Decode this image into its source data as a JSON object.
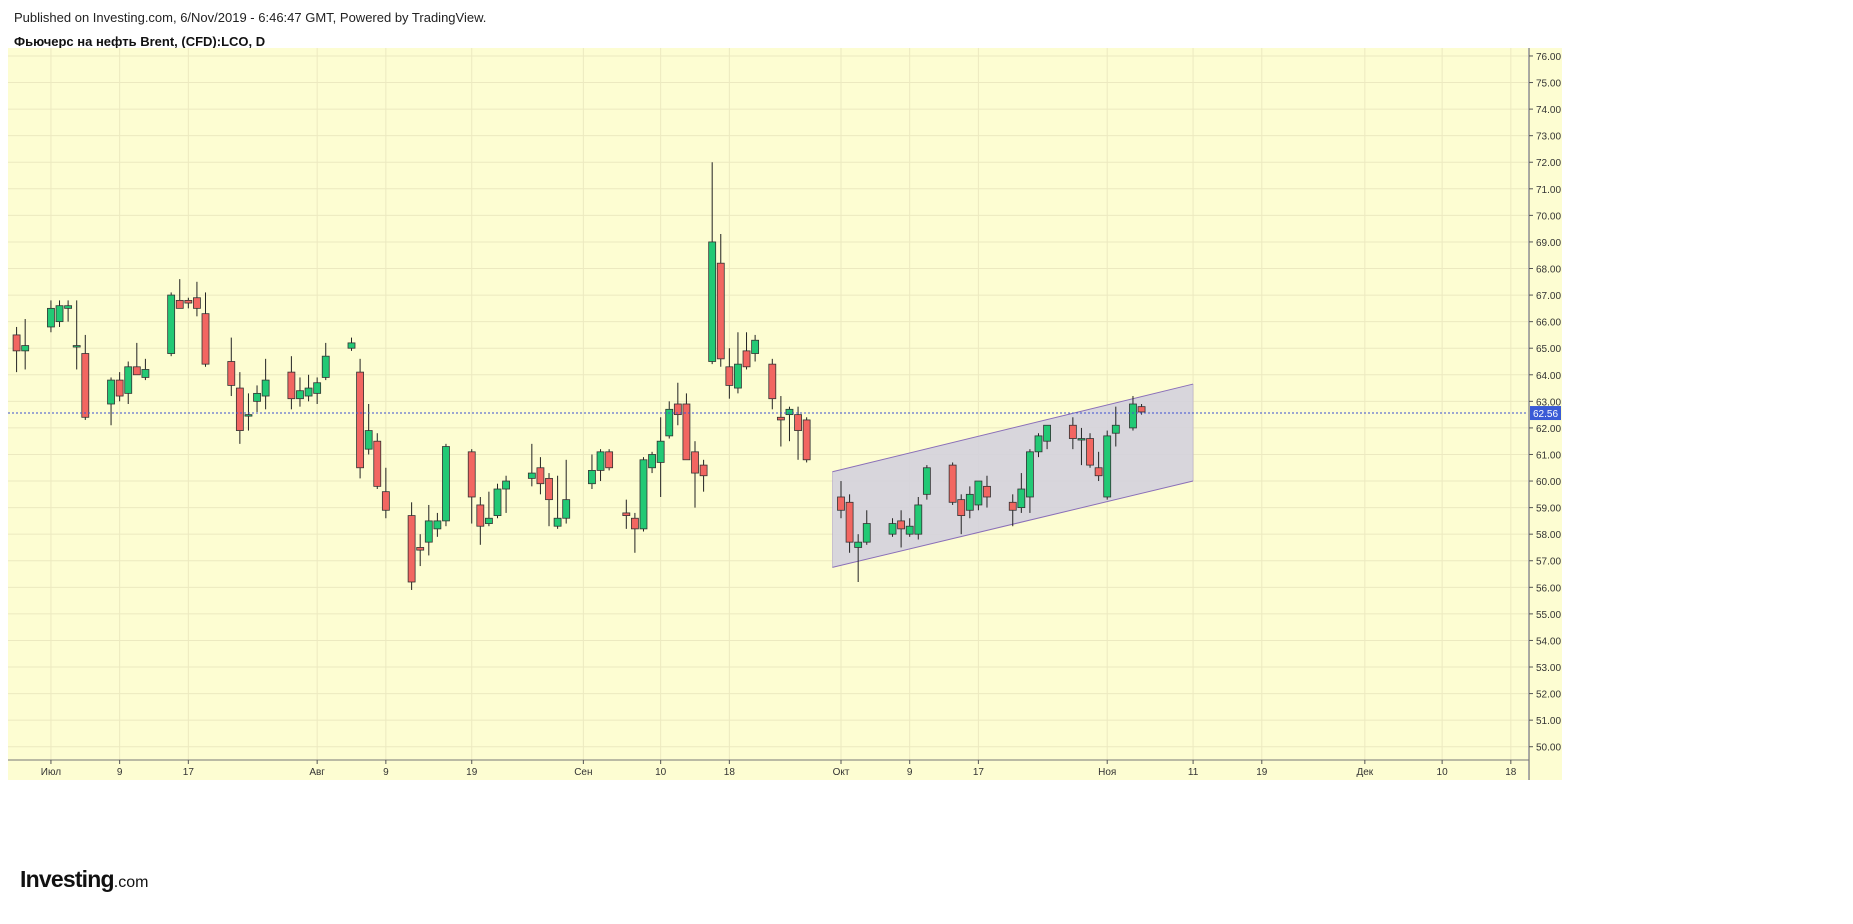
{
  "header": {
    "published": "Published on Investing.com, 6/Nov/2019 - 6:46:47 GMT, Powered by TradingView.",
    "symbol": "Фьючерс на нефть Brent, (CFD):LCO, D"
  },
  "logo": {
    "main": "Investing",
    "suffix": ".com"
  },
  "colors": {
    "background": "#fdfdd2",
    "up": "#22c975",
    "down": "#f26661",
    "wick": "#222222",
    "channel_fill": "#d4d2dd",
    "channel_line": "#8a6fb8",
    "price_line": "#3a4fcf",
    "price_label": "#3a5bd6"
  },
  "chart_data": {
    "type": "candlestick",
    "title": "Фьючерс на нефть Brent, (CFD):LCO, D",
    "interval": "D",
    "x_range": [
      "2019-06-26",
      "2019-12-20"
    ],
    "y_range": [
      49.5,
      76.3
    ],
    "y_ticks": [
      "50.00",
      "51.00",
      "52.00",
      "53.00",
      "54.00",
      "55.00",
      "56.00",
      "57.00",
      "58.00",
      "59.00",
      "60.00",
      "61.00",
      "62.00",
      "63.00",
      "64.00",
      "65.00",
      "66.00",
      "67.00",
      "68.00",
      "69.00",
      "70.00",
      "71.00",
      "72.00",
      "73.00",
      "74.00",
      "75.00",
      "76.00"
    ],
    "x_ticks": [
      {
        "date": "2019-07-01",
        "label": "Июл"
      },
      {
        "date": "2019-07-09",
        "label": "9"
      },
      {
        "date": "2019-07-17",
        "label": "17"
      },
      {
        "date": "2019-08-01",
        "label": "Авг"
      },
      {
        "date": "2019-08-09",
        "label": "9"
      },
      {
        "date": "2019-08-19",
        "label": "19"
      },
      {
        "date": "2019-09-01",
        "label": "Сен"
      },
      {
        "date": "2019-09-10",
        "label": "10"
      },
      {
        "date": "2019-09-18",
        "label": "18"
      },
      {
        "date": "2019-10-01",
        "label": "Окт"
      },
      {
        "date": "2019-10-09",
        "label": "9"
      },
      {
        "date": "2019-10-17",
        "label": "17"
      },
      {
        "date": "2019-11-01",
        "label": "Ноя"
      },
      {
        "date": "2019-11-11",
        "label": "11"
      },
      {
        "date": "2019-11-19",
        "label": "19"
      },
      {
        "date": "2019-12-01",
        "label": "Дек"
      },
      {
        "date": "2019-12-10",
        "label": "10"
      },
      {
        "date": "2019-12-18",
        "label": "18"
      }
    ],
    "last_price": "62.56",
    "candles": [
      {
        "date": "2019-06-27",
        "o": 65.5,
        "h": 65.8,
        "l": 64.1,
        "c": 64.9
      },
      {
        "date": "2019-06-28",
        "o": 64.9,
        "h": 66.1,
        "l": 64.2,
        "c": 65.1
      },
      {
        "date": "2019-07-01",
        "o": 65.8,
        "h": 66.8,
        "l": 65.6,
        "c": 66.5
      },
      {
        "date": "2019-07-02",
        "o": 66.0,
        "h": 66.8,
        "l": 65.8,
        "c": 66.6
      },
      {
        "date": "2019-07-03",
        "o": 66.5,
        "h": 66.8,
        "l": 66.0,
        "c": 66.6
      },
      {
        "date": "2019-07-04",
        "o": 65.1,
        "h": 66.8,
        "l": 64.2,
        "c": 65.1
      },
      {
        "date": "2019-07-05",
        "o": 64.8,
        "h": 65.5,
        "l": 62.3,
        "c": 62.4
      },
      {
        "date": "2019-07-08",
        "o": 62.9,
        "h": 63.9,
        "l": 62.1,
        "c": 63.8
      },
      {
        "date": "2019-07-09",
        "o": 63.8,
        "h": 64.1,
        "l": 63.0,
        "c": 63.2
      },
      {
        "date": "2019-07-10",
        "o": 63.3,
        "h": 64.5,
        "l": 62.9,
        "c": 64.3
      },
      {
        "date": "2019-07-11",
        "o": 64.3,
        "h": 65.2,
        "l": 64.0,
        "c": 64.0
      },
      {
        "date": "2019-07-12",
        "o": 63.9,
        "h": 64.6,
        "l": 63.8,
        "c": 64.2
      },
      {
        "date": "2019-07-15",
        "o": 64.8,
        "h": 67.1,
        "l": 64.7,
        "c": 67.0
      },
      {
        "date": "2019-07-16",
        "o": 66.8,
        "h": 67.6,
        "l": 66.5,
        "c": 66.5
      },
      {
        "date": "2019-07-17",
        "o": 66.8,
        "h": 66.9,
        "l": 66.5,
        "c": 66.7
      },
      {
        "date": "2019-07-18",
        "o": 66.9,
        "h": 67.5,
        "l": 66.2,
        "c": 66.5
      },
      {
        "date": "2019-07-19",
        "o": 66.3,
        "h": 67.1,
        "l": 64.3,
        "c": 64.4
      },
      {
        "date": "2019-07-22",
        "o": 64.5,
        "h": 65.4,
        "l": 63.2,
        "c": 63.6
      },
      {
        "date": "2019-07-23",
        "o": 63.5,
        "h": 64.1,
        "l": 61.4,
        "c": 61.9
      },
      {
        "date": "2019-07-24",
        "o": 62.5,
        "h": 63.3,
        "l": 61.9,
        "c": 62.5
      },
      {
        "date": "2019-07-25",
        "o": 63.0,
        "h": 63.6,
        "l": 62.6,
        "c": 63.3
      },
      {
        "date": "2019-07-26",
        "o": 63.2,
        "h": 64.6,
        "l": 62.7,
        "c": 63.8
      },
      {
        "date": "2019-07-29",
        "o": 64.1,
        "h": 64.7,
        "l": 62.7,
        "c": 63.1
      },
      {
        "date": "2019-07-30",
        "o": 63.1,
        "h": 63.9,
        "l": 62.8,
        "c": 63.4
      },
      {
        "date": "2019-07-31",
        "o": 63.2,
        "h": 64.0,
        "l": 63.0,
        "c": 63.5
      },
      {
        "date": "2019-08-01",
        "o": 63.3,
        "h": 63.9,
        "l": 62.9,
        "c": 63.7
      },
      {
        "date": "2019-08-02",
        "o": 63.9,
        "h": 65.2,
        "l": 63.8,
        "c": 64.7
      },
      {
        "date": "2019-08-05",
        "o": 65.0,
        "h": 65.4,
        "l": 64.9,
        "c": 65.2
      },
      {
        "date": "2019-08-06",
        "o": 64.1,
        "h": 64.6,
        "l": 60.1,
        "c": 60.5
      },
      {
        "date": "2019-08-07",
        "o": 61.2,
        "h": 62.9,
        "l": 61.0,
        "c": 61.9
      },
      {
        "date": "2019-08-08",
        "o": 61.5,
        "h": 61.8,
        "l": 59.7,
        "c": 59.8
      },
      {
        "date": "2019-08-09",
        "o": 59.6,
        "h": 60.5,
        "l": 58.6,
        "c": 58.9
      },
      {
        "date": "2019-08-12",
        "o": 58.7,
        "h": 59.2,
        "l": 55.9,
        "c": 56.2
      },
      {
        "date": "2019-08-13",
        "o": 57.5,
        "h": 58.0,
        "l": 56.8,
        "c": 57.4
      },
      {
        "date": "2019-08-14",
        "o": 57.7,
        "h": 59.1,
        "l": 57.2,
        "c": 58.5
      },
      {
        "date": "2019-08-15",
        "o": 58.2,
        "h": 58.8,
        "l": 57.9,
        "c": 58.5
      },
      {
        "date": "2019-08-16",
        "o": 58.5,
        "h": 61.4,
        "l": 58.3,
        "c": 61.3
      },
      {
        "date": "2019-08-19",
        "o": 61.1,
        "h": 61.2,
        "l": 58.4,
        "c": 59.4
      },
      {
        "date": "2019-08-20",
        "o": 59.1,
        "h": 59.4,
        "l": 57.6,
        "c": 58.3
      },
      {
        "date": "2019-08-21",
        "o": 58.4,
        "h": 59.6,
        "l": 58.3,
        "c": 58.6
      },
      {
        "date": "2019-08-22",
        "o": 58.7,
        "h": 59.9,
        "l": 58.6,
        "c": 59.7
      },
      {
        "date": "2019-08-23",
        "o": 59.7,
        "h": 60.2,
        "l": 58.8,
        "c": 60.0
      },
      {
        "date": "2019-08-26",
        "o": 60.1,
        "h": 61.4,
        "l": 59.8,
        "c": 60.3
      },
      {
        "date": "2019-08-27",
        "o": 60.5,
        "h": 60.9,
        "l": 59.5,
        "c": 59.9
      },
      {
        "date": "2019-08-28",
        "o": 60.1,
        "h": 60.3,
        "l": 58.3,
        "c": 59.3
      },
      {
        "date": "2019-08-29",
        "o": 58.3,
        "h": 60.2,
        "l": 58.2,
        "c": 58.6
      },
      {
        "date": "2019-08-30",
        "o": 58.6,
        "h": 60.8,
        "l": 58.4,
        "c": 59.3
      },
      {
        "date": "2019-09-02",
        "o": 59.9,
        "h": 61.0,
        "l": 59.7,
        "c": 60.4
      },
      {
        "date": "2019-09-03",
        "o": 60.4,
        "h": 61.2,
        "l": 60.0,
        "c": 61.1
      },
      {
        "date": "2019-09-04",
        "o": 61.1,
        "h": 61.2,
        "l": 60.4,
        "c": 60.5
      },
      {
        "date": "2019-09-06",
        "o": 58.8,
        "h": 59.3,
        "l": 58.2,
        "c": 58.7
      },
      {
        "date": "2019-09-07",
        "o": 58.6,
        "h": 58.8,
        "l": 57.3,
        "c": 58.2
      },
      {
        "date": "2019-09-08",
        "o": 58.2,
        "h": 60.9,
        "l": 58.1,
        "c": 60.8
      },
      {
        "date": "2019-09-09",
        "o": 60.5,
        "h": 61.1,
        "l": 60.3,
        "c": 61.0
      },
      {
        "date": "2019-09-10",
        "o": 60.7,
        "h": 62.4,
        "l": 59.4,
        "c": 61.5
      },
      {
        "date": "2019-09-11",
        "o": 61.7,
        "h": 63.0,
        "l": 61.6,
        "c": 62.7
      },
      {
        "date": "2019-09-12",
        "o": 62.9,
        "h": 63.7,
        "l": 62.1,
        "c": 62.5
      },
      {
        "date": "2019-09-13",
        "o": 62.9,
        "h": 63.3,
        "l": 60.9,
        "c": 60.8
      },
      {
        "date": "2019-09-14",
        "o": 61.1,
        "h": 61.5,
        "l": 59.0,
        "c": 60.3
      },
      {
        "date": "2019-09-15",
        "o": 60.6,
        "h": 60.8,
        "l": 59.6,
        "c": 60.2
      },
      {
        "date": "2019-09-16",
        "o": 64.5,
        "h": 72.0,
        "l": 64.4,
        "c": 69.0
      },
      {
        "date": "2019-09-17",
        "o": 68.2,
        "h": 69.3,
        "l": 64.3,
        "c": 64.6
      },
      {
        "date": "2019-09-18",
        "o": 64.3,
        "h": 65.0,
        "l": 63.1,
        "c": 63.6
      },
      {
        "date": "2019-09-19",
        "o": 63.5,
        "h": 65.6,
        "l": 63.3,
        "c": 64.4
      },
      {
        "date": "2019-09-20",
        "o": 64.9,
        "h": 65.6,
        "l": 64.2,
        "c": 64.3
      },
      {
        "date": "2019-09-21",
        "o": 64.8,
        "h": 65.5,
        "l": 64.5,
        "c": 65.3
      },
      {
        "date": "2019-09-23",
        "o": 64.4,
        "h": 64.6,
        "l": 62.7,
        "c": 63.1
      },
      {
        "date": "2019-09-24",
        "o": 62.4,
        "h": 63.2,
        "l": 61.3,
        "c": 62.3
      },
      {
        "date": "2019-09-25",
        "o": 62.5,
        "h": 62.8,
        "l": 61.5,
        "c": 62.7
      },
      {
        "date": "2019-09-26",
        "o": 62.5,
        "h": 62.8,
        "l": 60.8,
        "c": 61.9
      },
      {
        "date": "2019-09-27",
        "o": 62.3,
        "h": 62.4,
        "l": 60.7,
        "c": 60.8
      },
      {
        "date": "2019-10-01",
        "o": 59.4,
        "h": 60.0,
        "l": 58.6,
        "c": 58.9
      },
      {
        "date": "2019-10-02",
        "o": 59.2,
        "h": 59.5,
        "l": 57.3,
        "c": 57.7
      },
      {
        "date": "2019-10-03",
        "o": 57.5,
        "h": 58.0,
        "l": 56.2,
        "c": 57.7
      },
      {
        "date": "2019-10-04",
        "o": 57.7,
        "h": 58.9,
        "l": 57.6,
        "c": 58.4
      },
      {
        "date": "2019-10-07",
        "o": 58.0,
        "h": 58.6,
        "l": 57.9,
        "c": 58.4
      },
      {
        "date": "2019-10-08",
        "o": 58.5,
        "h": 58.9,
        "l": 57.5,
        "c": 58.2
      },
      {
        "date": "2019-10-09",
        "o": 58.0,
        "h": 58.6,
        "l": 57.9,
        "c": 58.3
      },
      {
        "date": "2019-10-10",
        "o": 58.0,
        "h": 59.4,
        "l": 57.8,
        "c": 59.1
      },
      {
        "date": "2019-10-11",
        "o": 59.5,
        "h": 60.6,
        "l": 59.3,
        "c": 60.5
      },
      {
        "date": "2019-10-14",
        "o": 60.6,
        "h": 60.7,
        "l": 59.1,
        "c": 59.2
      },
      {
        "date": "2019-10-15",
        "o": 59.3,
        "h": 59.5,
        "l": 58.0,
        "c": 58.7
      },
      {
        "date": "2019-10-16",
        "o": 58.9,
        "h": 59.8,
        "l": 58.6,
        "c": 59.5
      },
      {
        "date": "2019-10-17",
        "o": 59.1,
        "h": 60.0,
        "l": 58.9,
        "c": 60.0
      },
      {
        "date": "2019-10-18",
        "o": 59.8,
        "h": 60.2,
        "l": 59.0,
        "c": 59.4
      },
      {
        "date": "2019-10-21",
        "o": 59.2,
        "h": 59.5,
        "l": 58.3,
        "c": 58.9
      },
      {
        "date": "2019-10-22",
        "o": 59.0,
        "h": 60.3,
        "l": 58.8,
        "c": 59.7
      },
      {
        "date": "2019-10-23",
        "o": 59.4,
        "h": 61.2,
        "l": 58.8,
        "c": 61.1
      },
      {
        "date": "2019-10-24",
        "o": 61.1,
        "h": 61.8,
        "l": 60.9,
        "c": 61.7
      },
      {
        "date": "2019-10-25",
        "o": 61.5,
        "h": 62.1,
        "l": 61.2,
        "c": 62.1
      },
      {
        "date": "2019-10-28",
        "o": 62.1,
        "h": 62.4,
        "l": 61.2,
        "c": 61.6
      },
      {
        "date": "2019-10-29",
        "o": 61.6,
        "h": 62.0,
        "l": 60.6,
        "c": 61.6
      },
      {
        "date": "2019-10-30",
        "o": 61.6,
        "h": 61.8,
        "l": 60.5,
        "c": 60.6
      },
      {
        "date": "2019-10-31",
        "o": 60.5,
        "h": 61.1,
        "l": 60.0,
        "c": 60.2
      },
      {
        "date": "2019-11-01",
        "o": 59.4,
        "h": 61.9,
        "l": 59.3,
        "c": 61.7
      },
      {
        "date": "2019-11-02",
        "o": 61.8,
        "h": 62.8,
        "l": 61.3,
        "c": 62.1
      },
      {
        "date": "2019-11-04",
        "o": 62.0,
        "h": 63.2,
        "l": 61.9,
        "c": 62.9
      },
      {
        "date": "2019-11-05",
        "o": 62.8,
        "h": 62.9,
        "l": 62.5,
        "c": 62.6
      }
    ],
    "channel": {
      "upper": [
        {
          "date": "2019-09-30",
          "value": 60.35
        },
        {
          "date": "2019-11-11",
          "value": 63.65
        }
      ],
      "lower": [
        {
          "date": "2019-09-30",
          "value": 56.75
        },
        {
          "date": "2019-11-11",
          "value": 60.0
        }
      ]
    }
  }
}
